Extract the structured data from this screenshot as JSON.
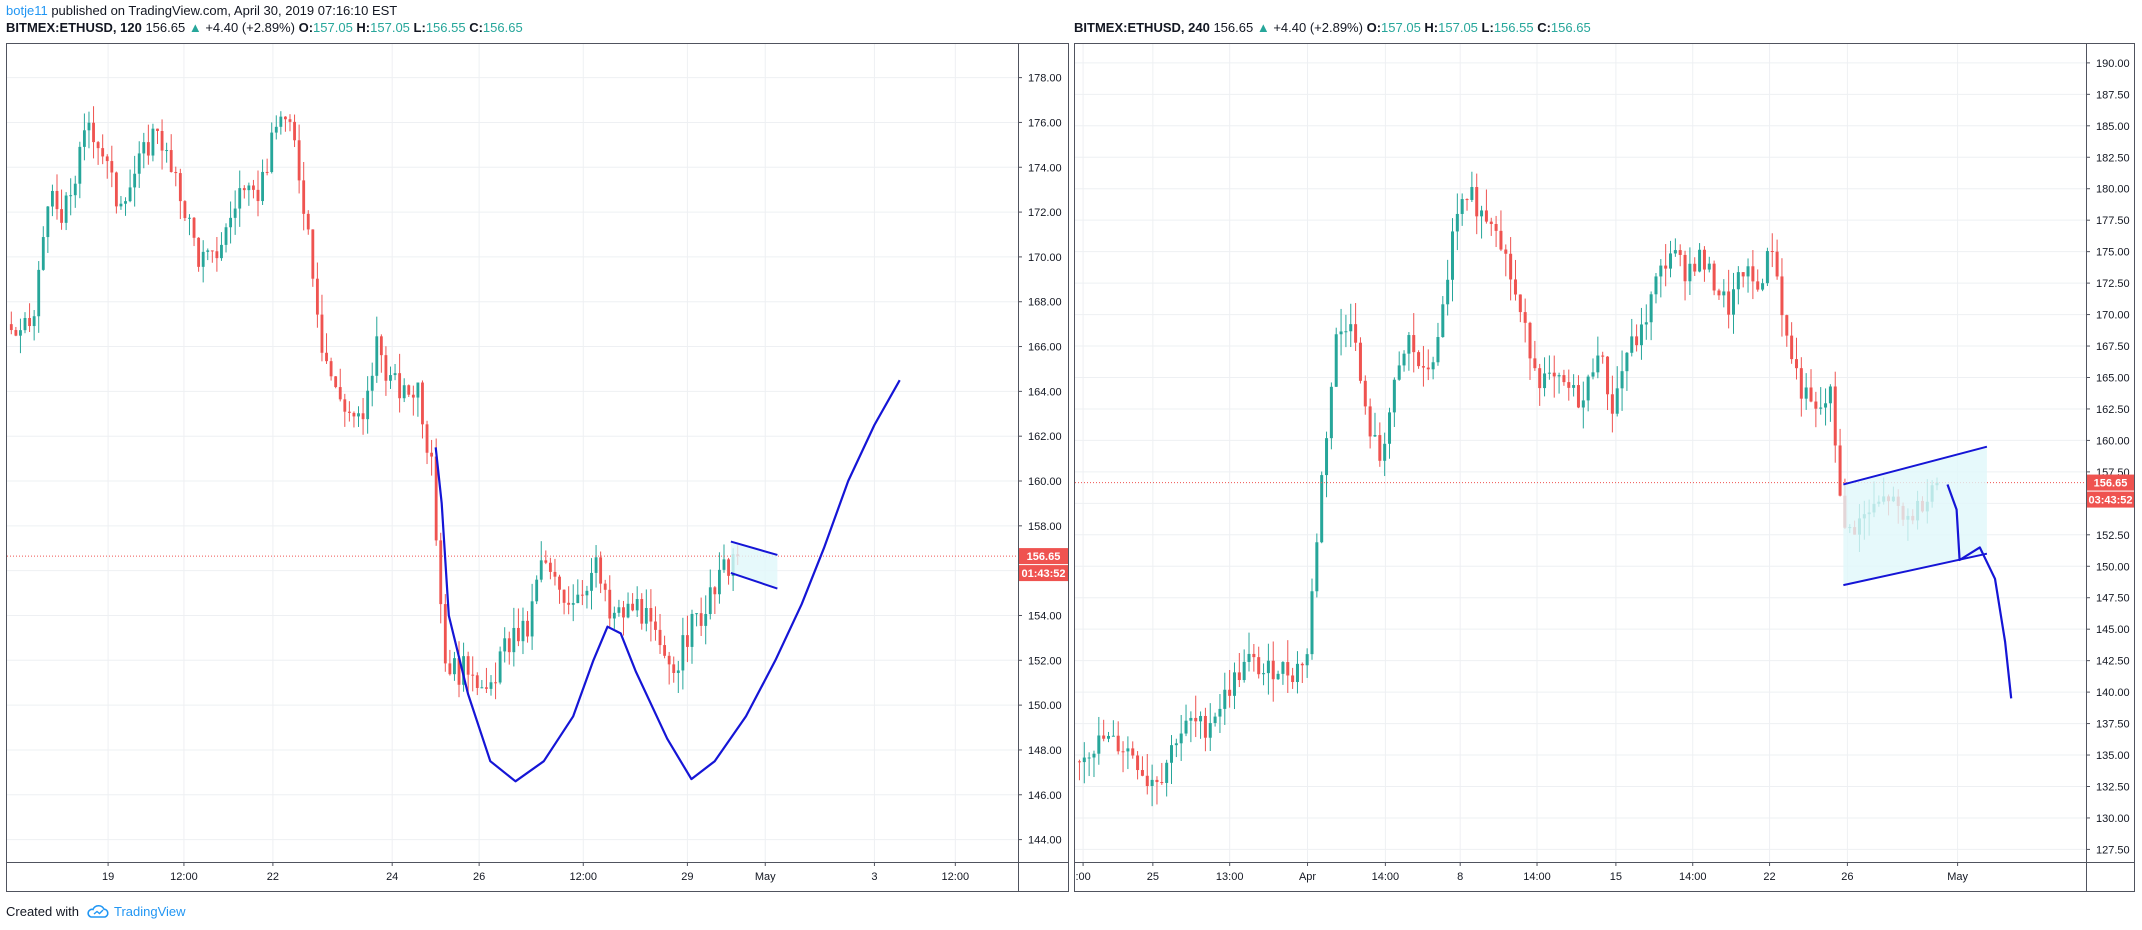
{
  "header": {
    "user": "botje11",
    "published": "published on TradingView.com, April 30, 2019 07:16:10 EST"
  },
  "footer": {
    "created_with": "Created with",
    "brand": "TradingView"
  },
  "colors": {
    "up": "#26a69a",
    "down": "#ef5350",
    "drawing": "#1515d6",
    "grid": "#eef0f3",
    "price_line": "#ef5350",
    "shaded": "#e0f7fa"
  },
  "charts": [
    {
      "legend": {
        "symbol": "BITMEX:ETHUSD, 120",
        "last": "156.65",
        "change": "+4.40 (+2.89%)",
        "o_label": "O:",
        "o": "157.05",
        "h_label": "H:",
        "h": "157.05",
        "l_label": "L:",
        "l": "156.55",
        "c_label": "C:",
        "c": "156.65"
      },
      "price_tag": "156.65",
      "countdown": "01:43:52"
    },
    {
      "legend": {
        "symbol": "BITMEX:ETHUSD, 240",
        "last": "156.65",
        "change": "+4.40 (+2.89%)",
        "o_label": "O:",
        "o": "157.05",
        "h_label": "H:",
        "h": "157.05",
        "l_label": "L:",
        "l": "156.55",
        "c_label": "C:",
        "c": "156.65"
      },
      "price_tag": "156.65",
      "countdown": "03:43:52"
    }
  ],
  "chart_data": [
    {
      "type": "candlestick",
      "title": "BITMEX:ETHUSD, 120",
      "x_tick_labels": [
        "19",
        "12:00",
        "22",
        "24",
        "26",
        "12:00",
        "29",
        "May",
        "3",
        "12:00"
      ],
      "y_tick_labels": [
        "144.00",
        "146.00",
        "148.00",
        "150.00",
        "152.00",
        "154.00",
        "156.00",
        "158.00",
        "160.00",
        "162.00",
        "164.00",
        "166.00",
        "168.00",
        "170.00",
        "172.00",
        "174.00",
        "176.00",
        "178.00"
      ],
      "ylim": [
        143,
        179.5
      ],
      "last_price": 156.65,
      "candles_close_path": [
        167.0,
        166.4,
        167.3,
        172.8,
        171.5,
        173.6,
        176.1,
        174.7,
        172.6,
        173.3,
        174.6,
        175.9,
        173.7,
        172.2,
        170.0,
        169.8,
        171.2,
        173.0,
        172.4,
        174.2,
        176.5,
        175.0,
        171.2,
        166.2,
        164.0,
        163.1,
        162.5,
        166.2,
        164.5,
        163.8,
        164.3,
        160.5,
        152.0,
        151.5,
        151.8,
        150.2,
        152.1,
        153.1,
        153.3,
        156.4,
        155.4,
        154.8,
        155.3,
        156.2,
        153.9,
        154.1,
        154.5,
        153.4,
        151.8,
        152.0,
        153.6,
        154.2,
        155.6,
        156.65
      ],
      "annotation": {
        "type": "hand-drawn curve + flag",
        "curve_prices": [
          161.5,
          159.0,
          154.0,
          150.5,
          147.5,
          146.6,
          147.5,
          149.5,
          152.0,
          153.5,
          153.2,
          151.5,
          148.5,
          146.7,
          147.5,
          149.5,
          152.0,
          154.5,
          157.0,
          160.0,
          162.5,
          164.5
        ]
      }
    },
    {
      "type": "candlestick",
      "title": "BITMEX:ETHUSD, 240",
      "x_tick_labels": [
        ":00",
        "25",
        "13:00",
        "Apr",
        "14:00",
        "8",
        "14:00",
        "15",
        "14:00",
        "22",
        "26",
        "May"
      ],
      "y_tick_labels": [
        "127.50",
        "130.00",
        "132.50",
        "135.00",
        "137.50",
        "140.00",
        "142.50",
        "145.00",
        "147.50",
        "150.00",
        "152.50",
        "155.00",
        "157.50",
        "160.00",
        "162.50",
        "165.00",
        "167.50",
        "170.00",
        "172.50",
        "175.00",
        "177.50",
        "180.00",
        "182.50",
        "185.00",
        "187.50",
        "190.00"
      ],
      "ylim": [
        126.5,
        191.5
      ],
      "last_price": 156.65,
      "candles_close_path": [
        134.5,
        135.5,
        136.2,
        135.8,
        135.2,
        133.0,
        133.5,
        136.5,
        137.5,
        137.2,
        139.0,
        141.0,
        142.5,
        141.5,
        142.0,
        141.5,
        143.0,
        157.0,
        168.0,
        170.0,
        162.0,
        158.5,
        164.0,
        168.0,
        165.0,
        167.5,
        176.0,
        180.0,
        178.0,
        177.5,
        173.0,
        168.5,
        165.0,
        164.5,
        164.0,
        163.0,
        167.5,
        162.5,
        167.0,
        168.5,
        172.5,
        175.0,
        173.5,
        174.5,
        172.5,
        170.5,
        173.5,
        172.0,
        175.5,
        168.0,
        164.0,
        162.0,
        163.5,
        152.5,
        153.5,
        154.5,
        155.5,
        153.5,
        154.5,
        156.65
      ],
      "annotation": {
        "type": "rising channel + hand-drawn drop",
        "channel_top": [
          156.5,
          159.5
        ],
        "channel_bottom": [
          148.5,
          151.0
        ],
        "drop_prices": [
          156.5,
          154.5,
          150.5,
          151.5,
          149.0,
          144.0,
          139.5
        ]
      }
    }
  ]
}
